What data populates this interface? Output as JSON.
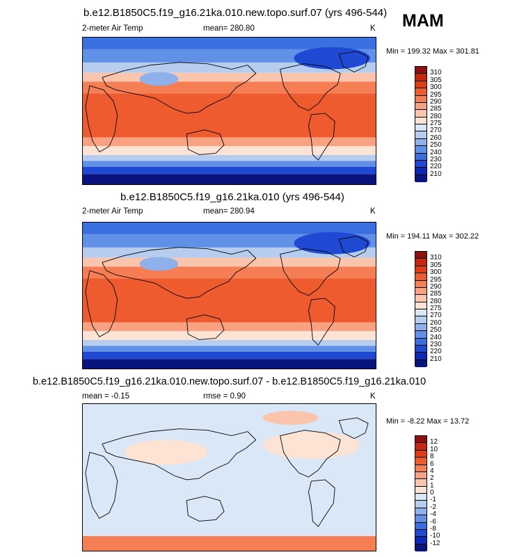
{
  "season": "MAM",
  "panels": [
    {
      "id": "top",
      "title": "b.e12.B1850C5.f19_g16.21ka.010.new.topo.surf.07 (yrs 496-544)",
      "variable": "2-meter Air Temp",
      "mean_text": "mean= 280.80",
      "rmse_text": "",
      "units": "K",
      "minmax": "Min = 199.32 Max = 301.81",
      "levels": [
        "310",
        "305",
        "300",
        "295",
        "290",
        "285",
        "280",
        "275",
        "270",
        "260",
        "250",
        "240",
        "230",
        "220",
        "210"
      ],
      "colors": [
        "#910e0e",
        "#c3270e",
        "#de3d12",
        "#ed5b2e",
        "#f57e55",
        "#f9a282",
        "#fbc4ac",
        "#fde3d3",
        "#d9e7f6",
        "#b6cdf0",
        "#8eb1ec",
        "#6191e7",
        "#3a6fe0",
        "#1f49d3",
        "#0b28b8",
        "#0a147e"
      ]
    },
    {
      "id": "middle",
      "title": "b.e12.B1850C5.f19_g16.21ka.010 (yrs 496-544)",
      "variable": "2-meter Air Temp",
      "mean_text": "mean= 280.94",
      "rmse_text": "",
      "units": "K",
      "minmax": "Min = 194.11 Max = 302.22",
      "levels": [
        "310",
        "305",
        "300",
        "295",
        "290",
        "285",
        "280",
        "275",
        "270",
        "260",
        "250",
        "240",
        "230",
        "220",
        "210"
      ],
      "colors": [
        "#910e0e",
        "#c3270e",
        "#de3d12",
        "#ed5b2e",
        "#f57e55",
        "#f9a282",
        "#fbc4ac",
        "#fde3d3",
        "#d9e7f6",
        "#b6cdf0",
        "#8eb1ec",
        "#6191e7",
        "#3a6fe0",
        "#1f49d3",
        "#0b28b8",
        "#0a147e"
      ]
    },
    {
      "id": "bottom",
      "title": "b.e12.B1850C5.f19_g16.21ka.010.new.topo.surf.07 - b.e12.B1850C5.f19_g16.21ka.010",
      "variable": "",
      "mean_text": "mean =  -0.15",
      "rmse_text": "rmse =   0.90",
      "units": "K",
      "minmax": "Min = -8.22 Max = 13.72",
      "levels": [
        "12",
        "10",
        "8",
        "6",
        "4",
        "2",
        "1",
        "0",
        "-1",
        "-2",
        "-4",
        "-6",
        "-8",
        "-10",
        "-12"
      ],
      "colors": [
        "#910e0e",
        "#c3270e",
        "#de3d12",
        "#ed5b2e",
        "#f57e55",
        "#f9a282",
        "#fbc4ac",
        "#fde3d3",
        "#d9e7f6",
        "#b6cdf0",
        "#8eb1ec",
        "#6191e7",
        "#3a6fe0",
        "#1f49d3",
        "#0b28b8",
        "#0a147e"
      ]
    }
  ]
}
